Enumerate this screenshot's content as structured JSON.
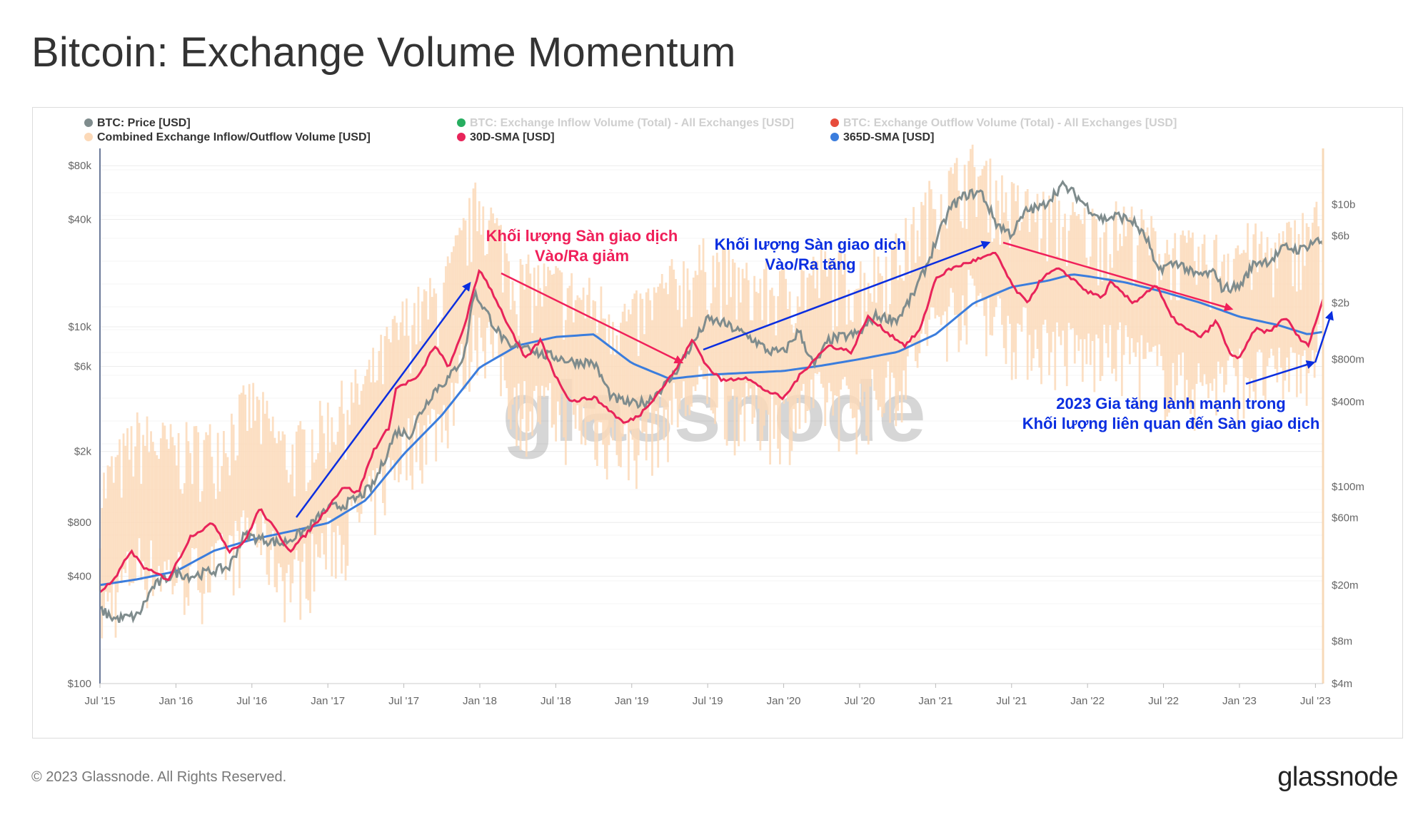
{
  "page": {
    "title": "Bitcoin: Exchange Volume Momentum",
    "copyright": "© 2023 Glassnode. All Rights Reserved.",
    "logo": "glassnode",
    "watermark": "glassnode"
  },
  "legend": [
    {
      "label": "BTC: Price [USD]",
      "color": "#7f8c8d",
      "muted": false
    },
    {
      "label": "BTC: Exchange Inflow Volume (Total) - All Exchanges [USD]",
      "color": "#27ae60",
      "muted": true
    },
    {
      "label": "BTC: Exchange Outflow Volume (Total) - All Exchanges [USD]",
      "color": "#e74c3c",
      "muted": true
    },
    {
      "label": "Combined Exchange Inflow/Outflow Volume [USD]",
      "color": "#fcd9b8",
      "muted": false
    },
    {
      "label": "30D-SMA [USD]",
      "color": "#e8245a",
      "muted": false
    },
    {
      "label": "365D-SMA [USD]",
      "color": "#3b7ddd",
      "muted": false
    }
  ],
  "annotations": {
    "decline": [
      "Khối lượng Sàn giao dịch",
      "Vào/Ra giảm"
    ],
    "rise": [
      "Khối lượng Sàn giao dịch",
      "Vào/Ra tăng"
    ],
    "growth": [
      "2023 Gia tăng lành mạnh trong",
      "Khối lượng liên quan đến Sàn giao dịch"
    ]
  },
  "colors": {
    "price": "#7f8c8d",
    "combined": "#fcd9b8",
    "sma30": "#e8245a",
    "sma365": "#3b7ddd",
    "arrow_red": "#f0205a",
    "arrow_blue": "#0a2ee0"
  },
  "chart_data": {
    "type": "line",
    "title": "Bitcoin: Exchange Volume Momentum",
    "x_range": [
      2015.5,
      2023.55
    ],
    "x_ticks": [
      {
        "label": "Jul '15",
        "t": 2015.5
      },
      {
        "label": "Jan '16",
        "t": 2016.0
      },
      {
        "label": "Jul '16",
        "t": 2016.5
      },
      {
        "label": "Jan '17",
        "t": 2017.0
      },
      {
        "label": "Jul '17",
        "t": 2017.5
      },
      {
        "label": "Jan '18",
        "t": 2018.0
      },
      {
        "label": "Jul '18",
        "t": 2018.5
      },
      {
        "label": "Jan '19",
        "t": 2019.0
      },
      {
        "label": "Jul '19",
        "t": 2019.5
      },
      {
        "label": "Jan '20",
        "t": 2020.0
      },
      {
        "label": "Jul '20",
        "t": 2020.5
      },
      {
        "label": "Jan '21",
        "t": 2021.0
      },
      {
        "label": "Jul '21",
        "t": 2021.5
      },
      {
        "label": "Jan '22",
        "t": 2022.0
      },
      {
        "label": "Jul '22",
        "t": 2022.5
      },
      {
        "label": "Jan '23",
        "t": 2023.0
      },
      {
        "label": "Jul '23",
        "t": 2023.5
      }
    ],
    "y_left": {
      "scale": "log",
      "range": [
        100,
        100000
      ],
      "ticks": [
        {
          "label": "$80k",
          "v": 80000
        },
        {
          "label": "$40k",
          "v": 40000
        },
        {
          "label": "$10k",
          "v": 10000
        },
        {
          "label": "$6k",
          "v": 6000
        },
        {
          "label": "$2k",
          "v": 2000
        },
        {
          "label": "$800",
          "v": 800
        },
        {
          "label": "$400",
          "v": 400
        },
        {
          "label": "$100",
          "v": 100
        }
      ]
    },
    "y_right": {
      "scale": "log",
      "range": [
        4000000,
        25000000000
      ],
      "ticks": [
        {
          "label": "$10b",
          "v": 10000000000
        },
        {
          "label": "$6b",
          "v": 6000000000
        },
        {
          "label": "$2b",
          "v": 2000000000
        },
        {
          "label": "$800m",
          "v": 800000000
        },
        {
          "label": "$400m",
          "v": 400000000
        },
        {
          "label": "$100m",
          "v": 100000000
        },
        {
          "label": "$60m",
          "v": 60000000
        },
        {
          "label": "$20m",
          "v": 20000000
        },
        {
          "label": "$8m",
          "v": 8000000
        },
        {
          "label": "$4m",
          "v": 4000000
        }
      ]
    },
    "series": [
      {
        "name": "BTC: Price [USD]",
        "axis": "left",
        "points": [
          [
            2015.5,
            260
          ],
          [
            2015.6,
            230
          ],
          [
            2015.75,
            240
          ],
          [
            2015.85,
            350
          ],
          [
            2016.0,
            420
          ],
          [
            2016.1,
            400
          ],
          [
            2016.2,
            420
          ],
          [
            2016.35,
            450
          ],
          [
            2016.45,
            680
          ],
          [
            2016.55,
            650
          ],
          [
            2016.7,
            610
          ],
          [
            2016.85,
            720
          ],
          [
            2017.0,
            960
          ],
          [
            2017.1,
            1000
          ],
          [
            2017.2,
            1100
          ],
          [
            2017.3,
            1300
          ],
          [
            2017.45,
            2600
          ],
          [
            2017.55,
            2500
          ],
          [
            2017.6,
            3200
          ],
          [
            2017.7,
            4400
          ],
          [
            2017.8,
            5200
          ],
          [
            2017.9,
            7000
          ],
          [
            2017.96,
            15500
          ],
          [
            2018.0,
            14000
          ],
          [
            2018.1,
            10000
          ],
          [
            2018.2,
            7500
          ],
          [
            2018.3,
            8000
          ],
          [
            2018.4,
            7000
          ],
          [
            2018.5,
            6800
          ],
          [
            2018.6,
            6400
          ],
          [
            2018.75,
            6300
          ],
          [
            2018.87,
            4000
          ],
          [
            2019.0,
            3700
          ],
          [
            2019.1,
            3800
          ],
          [
            2019.25,
            5000
          ],
          [
            2019.4,
            8000
          ],
          [
            2019.5,
            11000
          ],
          [
            2019.6,
            10500
          ],
          [
            2019.7,
            9500
          ],
          [
            2019.8,
            8500
          ],
          [
            2019.9,
            7300
          ],
          [
            2020.0,
            7200
          ],
          [
            2020.1,
            9500
          ],
          [
            2020.2,
            6000
          ],
          [
            2020.3,
            8500
          ],
          [
            2020.5,
            9200
          ],
          [
            2020.6,
            11500
          ],
          [
            2020.75,
            11000
          ],
          [
            2020.85,
            15000
          ],
          [
            2020.95,
            23000
          ],
          [
            2021.0,
            30000
          ],
          [
            2021.1,
            47000
          ],
          [
            2021.2,
            55000
          ],
          [
            2021.3,
            57000
          ],
          [
            2021.4,
            38000
          ],
          [
            2021.5,
            33000
          ],
          [
            2021.6,
            45000
          ],
          [
            2021.7,
            47000
          ],
          [
            2021.83,
            62000
          ],
          [
            2021.9,
            57000
          ],
          [
            2022.0,
            47000
          ],
          [
            2022.1,
            40000
          ],
          [
            2022.2,
            42000
          ],
          [
            2022.3,
            39000
          ],
          [
            2022.4,
            30000
          ],
          [
            2022.45,
            21000
          ],
          [
            2022.6,
            23000
          ],
          [
            2022.7,
            19500
          ],
          [
            2022.85,
            20000
          ],
          [
            2022.88,
            16500
          ],
          [
            2023.0,
            16800
          ],
          [
            2023.1,
            23000
          ],
          [
            2023.2,
            23500
          ],
          [
            2023.3,
            28000
          ],
          [
            2023.4,
            27000
          ],
          [
            2023.5,
            30500
          ],
          [
            2023.55,
            29500
          ]
        ]
      },
      {
        "name": "Combined Exchange Inflow/Outflow Volume [USD]",
        "axis": "right",
        "style": "area-noisy",
        "points": [
          [
            2015.5,
            28000000
          ],
          [
            2015.75,
            70000000
          ],
          [
            2016.0,
            55000000
          ],
          [
            2016.25,
            60000000
          ],
          [
            2016.5,
            120000000
          ],
          [
            2016.75,
            50000000
          ],
          [
            2017.0,
            90000000
          ],
          [
            2017.25,
            160000000
          ],
          [
            2017.5,
            450000000
          ],
          [
            2017.75,
            700000000
          ],
          [
            2018.0,
            3500000000
          ],
          [
            2018.25,
            900000000
          ],
          [
            2018.5,
            800000000
          ],
          [
            2018.75,
            600000000
          ],
          [
            2019.0,
            450000000
          ],
          [
            2019.25,
            800000000
          ],
          [
            2019.5,
            1200000000
          ],
          [
            2019.75,
            800000000
          ],
          [
            2020.0,
            750000000
          ],
          [
            2020.25,
            1000000000
          ],
          [
            2020.5,
            900000000
          ],
          [
            2020.75,
            1300000000
          ],
          [
            2021.0,
            3500000000
          ],
          [
            2021.25,
            5500000000
          ],
          [
            2021.5,
            3000000000
          ],
          [
            2021.75,
            2500000000
          ],
          [
            2022.0,
            2000000000
          ],
          [
            2022.25,
            2200000000
          ],
          [
            2022.5,
            1500000000
          ],
          [
            2022.75,
            1200000000
          ],
          [
            2023.0,
            1500000000
          ],
          [
            2023.25,
            1400000000
          ],
          [
            2023.5,
            2200000000
          ]
        ]
      },
      {
        "name": "30D-SMA [USD]",
        "axis": "right",
        "points": [
          [
            2015.5,
            18000000
          ],
          [
            2015.6,
            22000000
          ],
          [
            2015.7,
            35000000
          ],
          [
            2015.8,
            26000000
          ],
          [
            2015.95,
            22000000
          ],
          [
            2016.1,
            45000000
          ],
          [
            2016.25,
            55000000
          ],
          [
            2016.35,
            35000000
          ],
          [
            2016.45,
            40000000
          ],
          [
            2016.55,
            70000000
          ],
          [
            2016.65,
            50000000
          ],
          [
            2016.75,
            35000000
          ],
          [
            2016.85,
            45000000
          ],
          [
            2016.95,
            60000000
          ],
          [
            2017.1,
            100000000
          ],
          [
            2017.2,
            90000000
          ],
          [
            2017.3,
            180000000
          ],
          [
            2017.4,
            260000000
          ],
          [
            2017.45,
            500000000
          ],
          [
            2017.6,
            600000000
          ],
          [
            2017.7,
            1000000000
          ],
          [
            2017.8,
            700000000
          ],
          [
            2017.9,
            1400000000
          ],
          [
            2018.0,
            3500000000
          ],
          [
            2018.1,
            2200000000
          ],
          [
            2018.2,
            1300000000
          ],
          [
            2018.3,
            800000000
          ],
          [
            2018.4,
            1100000000
          ],
          [
            2018.5,
            600000000
          ],
          [
            2018.6,
            400000000
          ],
          [
            2018.75,
            430000000
          ],
          [
            2018.85,
            350000000
          ],
          [
            2018.95,
            280000000
          ],
          [
            2019.05,
            320000000
          ],
          [
            2019.2,
            500000000
          ],
          [
            2019.3,
            700000000
          ],
          [
            2019.4,
            1100000000
          ],
          [
            2019.5,
            700000000
          ],
          [
            2019.6,
            560000000
          ],
          [
            2019.75,
            600000000
          ],
          [
            2019.85,
            500000000
          ],
          [
            2020.0,
            420000000
          ],
          [
            2020.1,
            600000000
          ],
          [
            2020.2,
            800000000
          ],
          [
            2020.3,
            1000000000
          ],
          [
            2020.45,
            900000000
          ],
          [
            2020.55,
            1600000000
          ],
          [
            2020.7,
            1200000000
          ],
          [
            2020.8,
            1000000000
          ],
          [
            2020.9,
            1300000000
          ],
          [
            2021.0,
            3000000000
          ],
          [
            2021.1,
            3500000000
          ],
          [
            2021.25,
            4000000000
          ],
          [
            2021.4,
            4500000000
          ],
          [
            2021.5,
            2700000000
          ],
          [
            2021.6,
            2000000000
          ],
          [
            2021.7,
            3000000000
          ],
          [
            2021.8,
            3500000000
          ],
          [
            2021.9,
            3000000000
          ],
          [
            2022.0,
            2400000000
          ],
          [
            2022.1,
            2200000000
          ],
          [
            2022.15,
            2800000000
          ],
          [
            2022.3,
            2000000000
          ],
          [
            2022.45,
            2700000000
          ],
          [
            2022.55,
            1600000000
          ],
          [
            2022.65,
            1300000000
          ],
          [
            2022.75,
            1150000000
          ],
          [
            2022.85,
            1500000000
          ],
          [
            2022.93,
            900000000
          ],
          [
            2023.0,
            800000000
          ],
          [
            2023.1,
            1300000000
          ],
          [
            2023.2,
            1250000000
          ],
          [
            2023.3,
            1600000000
          ],
          [
            2023.4,
            1100000000
          ],
          [
            2023.45,
            1000000000
          ],
          [
            2023.55,
            2100000000
          ]
        ]
      },
      {
        "name": "365D-SMA [USD]",
        "axis": "right",
        "points": [
          [
            2015.5,
            20000000
          ],
          [
            2015.75,
            22000000
          ],
          [
            2016.0,
            25000000
          ],
          [
            2016.25,
            35000000
          ],
          [
            2016.5,
            42000000
          ],
          [
            2016.75,
            48000000
          ],
          [
            2017.0,
            55000000
          ],
          [
            2017.25,
            80000000
          ],
          [
            2017.5,
            170000000
          ],
          [
            2017.75,
            320000000
          ],
          [
            2018.0,
            700000000
          ],
          [
            2018.25,
            1000000000
          ],
          [
            2018.5,
            1150000000
          ],
          [
            2018.75,
            1200000000
          ],
          [
            2019.0,
            750000000
          ],
          [
            2019.25,
            580000000
          ],
          [
            2019.5,
            620000000
          ],
          [
            2019.75,
            640000000
          ],
          [
            2020.0,
            660000000
          ],
          [
            2020.25,
            720000000
          ],
          [
            2020.5,
            800000000
          ],
          [
            2020.75,
            900000000
          ],
          [
            2021.0,
            1200000000
          ],
          [
            2021.25,
            2000000000
          ],
          [
            2021.5,
            2600000000
          ],
          [
            2021.75,
            2900000000
          ],
          [
            2021.9,
            3200000000
          ],
          [
            2022.0,
            3100000000
          ],
          [
            2022.25,
            2800000000
          ],
          [
            2022.5,
            2400000000
          ],
          [
            2022.75,
            2000000000
          ],
          [
            2023.0,
            1600000000
          ],
          [
            2023.25,
            1400000000
          ],
          [
            2023.45,
            1200000000
          ],
          [
            2023.55,
            1250000000
          ]
        ]
      }
    ]
  }
}
